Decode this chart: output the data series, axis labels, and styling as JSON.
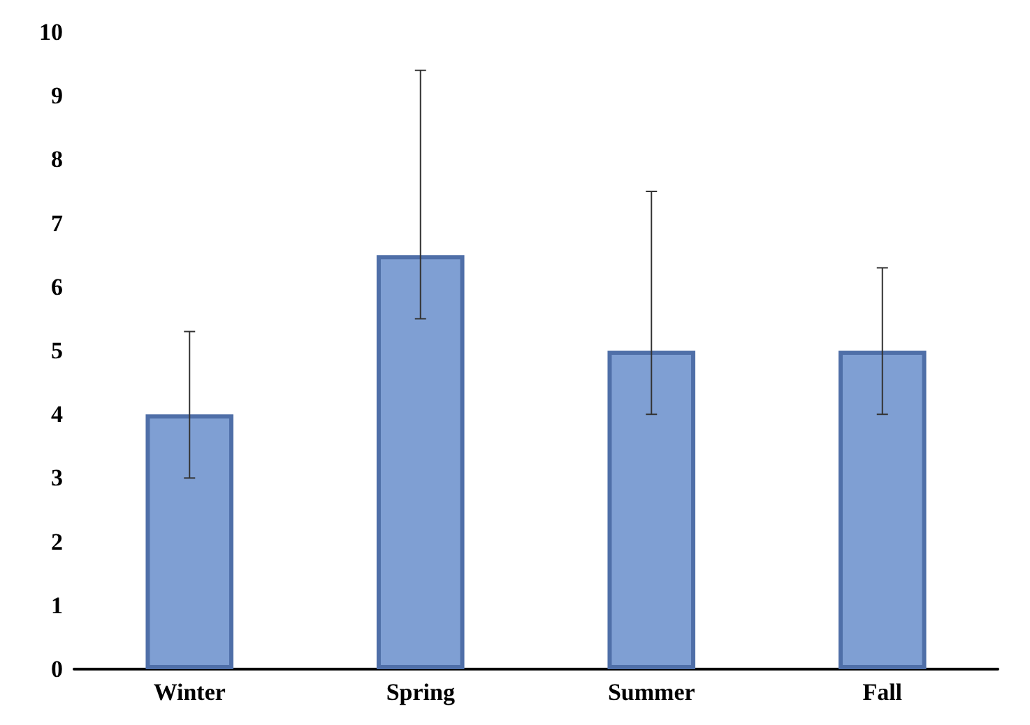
{
  "chart_data": {
    "type": "bar",
    "categories": [
      "Winter",
      "Spring",
      "Summer",
      "Fall"
    ],
    "values": [
      4,
      6.5,
      5,
      5
    ],
    "errors": [
      [
        3,
        5.3
      ],
      [
        5.5,
        9.4
      ],
      [
        4,
        7.5
      ],
      [
        4,
        6.3
      ]
    ],
    "color": "#7f9fd3",
    "ylim": [
      0,
      10
    ],
    "yticks": [
      0,
      1,
      2,
      3,
      4,
      5,
      6,
      7,
      8,
      9,
      10
    ],
    "grid": false
  }
}
